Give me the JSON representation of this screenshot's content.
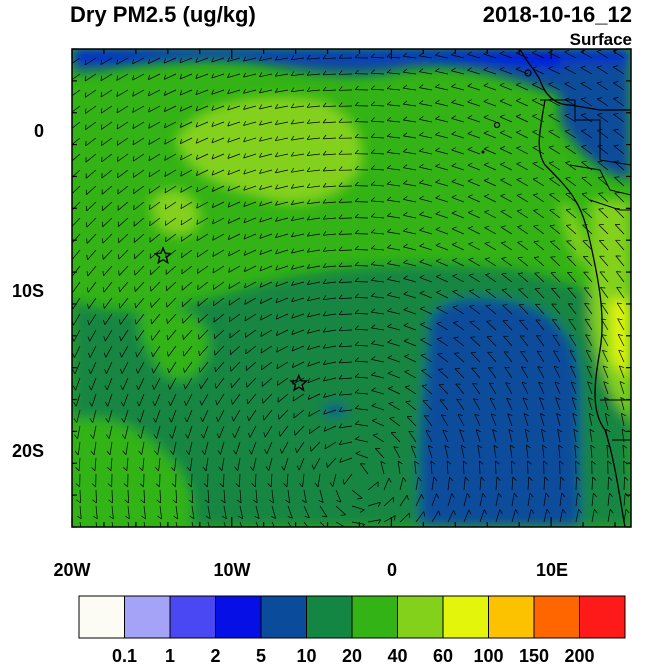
{
  "header": {
    "title": "Dry PM2.5 (ug/kg)",
    "date": "2018-10-16_12",
    "level": "Surface"
  },
  "axes": {
    "lat_ticks": [
      {
        "label": "0",
        "lat": 0
      },
      {
        "label": "10S",
        "lat": -10
      },
      {
        "label": "20S",
        "lat": -20
      }
    ],
    "lon_ticks": [
      {
        "label": "20W",
        "lon": -20
      },
      {
        "label": "10W",
        "lon": -10
      },
      {
        "label": "0",
        "lon": 0
      },
      {
        "label": "10E",
        "lon": 10
      }
    ],
    "lat_range": [
      -25,
      5
    ],
    "lon_range": [
      -20,
      15
    ]
  },
  "colorbar": {
    "labels": [
      "0.1",
      "1",
      "2",
      "5",
      "10",
      "20",
      "40",
      "60",
      "100",
      "150",
      "200"
    ],
    "colors": [
      "#fcfcf4",
      "#a5a3f7",
      "#4a48f2",
      "#0610e6",
      "#0a4c9b",
      "#138643",
      "#33b315",
      "#83d11a",
      "#e2f50b",
      "#fcc200",
      "#ff6600",
      "#ff1a1a"
    ]
  },
  "markers": [
    {
      "name": "star-marker-1",
      "lon": -14.3,
      "lat": -8.0
    },
    {
      "name": "star-marker-2",
      "lon": -5.8,
      "lat": -16.0
    }
  ],
  "colors": {
    "ocean_low": "#0a4c9b",
    "mid": "#138643",
    "high": "#33b315",
    "higher": "#83d11a",
    "highest": "#e2f50b",
    "blue_north": "#0610e6"
  }
}
